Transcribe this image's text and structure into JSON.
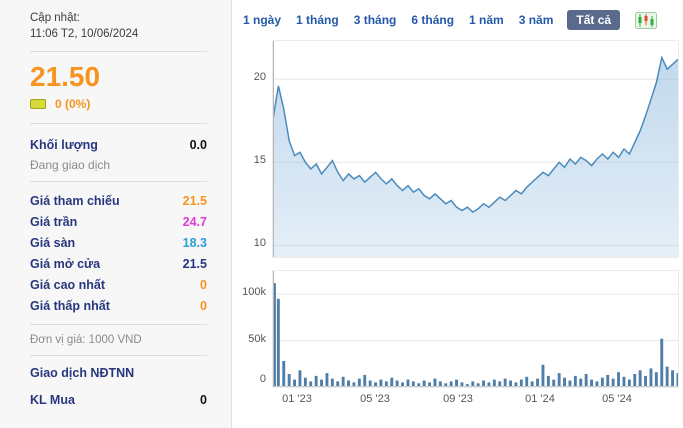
{
  "sidebar": {
    "update_label": "Cập nhật:",
    "update_time": "11:06 T2, 10/06/2024",
    "price": "21.50",
    "change": "0 (0%)",
    "volume_label": "Khối lượng",
    "volume_value": "0.0",
    "status": "Đang giao dịch",
    "price_rows": [
      {
        "label": "Giá tham chiếu",
        "value": "21.5",
        "color": "#f7941e"
      },
      {
        "label": "Giá trần",
        "value": "24.7",
        "color": "#df3bd8"
      },
      {
        "label": "Giá sàn",
        "value": "18.3",
        "color": "#2a9fd8"
      },
      {
        "label": "Giá mở cửa",
        "value": "21.5",
        "color": "#26377d"
      },
      {
        "label": "Giá cao nhất",
        "value": "0",
        "color": "#f7941e"
      },
      {
        "label": "Giá thấp nhất",
        "value": "0",
        "color": "#f7941e"
      }
    ],
    "price_unit": "Đơn vị giá: 1000 VND",
    "foreign_section_label": "Giao dịch NĐTNN",
    "foreign_rows": [
      {
        "label": "KL Mua",
        "value": "0"
      }
    ]
  },
  "tabs": {
    "items": [
      {
        "label": "1 ngày",
        "active": false
      },
      {
        "label": "1 tháng",
        "active": false
      },
      {
        "label": "3 tháng",
        "active": false
      },
      {
        "label": "6 tháng",
        "active": false
      },
      {
        "label": "1 năm",
        "active": false
      },
      {
        "label": "3 năm",
        "active": false
      },
      {
        "label": "Tất cả",
        "active": true
      }
    ]
  },
  "colors": {
    "accent_orange": "#f7941e",
    "navy": "#26377d",
    "line": "#4a8bbd",
    "area_fill": "#6da4d4",
    "bars": "#4f7ea8",
    "tab_active_bg": "#596a8d",
    "tab_link": "#2458a8"
  },
  "chart_data": [
    {
      "type": "area",
      "title": "Price history (1000 VND)",
      "ylim": [
        9.3,
        22.3
      ],
      "y_ticks": [
        20,
        15,
        10
      ],
      "grid": true,
      "legend": "none",
      "x_ticks": [
        {
          "label": "01 '23",
          "pos": 0.062
        },
        {
          "label": "05 '23",
          "pos": 0.255
        },
        {
          "label": "09 '23",
          "pos": 0.46
        },
        {
          "label": "01 '24",
          "pos": 0.662
        },
        {
          "label": "05 '24",
          "pos": 0.853
        }
      ],
      "values": [
        17.6,
        19.6,
        18.2,
        16.3,
        15.4,
        15.6,
        15.0,
        14.6,
        14.9,
        14.3,
        14.7,
        15.1,
        14.4,
        13.9,
        14.3,
        14.0,
        14.2,
        13.8,
        14.1,
        14.4,
        14.0,
        13.7,
        14.0,
        13.6,
        13.3,
        13.6,
        13.2,
        13.4,
        13.0,
        12.8,
        13.1,
        12.8,
        12.5,
        12.7,
        12.3,
        12.1,
        12.3,
        12.0,
        12.2,
        12.5,
        12.3,
        12.6,
        12.9,
        12.7,
        13.0,
        13.3,
        13.1,
        13.5,
        13.8,
        14.1,
        14.4,
        14.2,
        14.6,
        15.0,
        14.7,
        15.2,
        14.9,
        15.3,
        15.1,
        14.8,
        15.2,
        15.5,
        15.2,
        15.6,
        15.3,
        15.8,
        15.5,
        16.2,
        16.9,
        17.8,
        18.8,
        19.8,
        21.3,
        20.6,
        20.9,
        21.2
      ]
    },
    {
      "type": "bar",
      "title": "Volume (shares, thousands)",
      "ylim": [
        0,
        125
      ],
      "y_ticks": [
        {
          "v": 100,
          "label": "100k"
        },
        {
          "v": 50,
          "label": "50k"
        },
        {
          "v": 0,
          "label": "0"
        }
      ],
      "grid": true,
      "values": [
        112,
        95,
        28,
        14,
        8,
        18,
        10,
        6,
        12,
        8,
        15,
        9,
        6,
        11,
        7,
        5,
        9,
        13,
        7,
        5,
        8,
        6,
        10,
        7,
        5,
        8,
        6,
        4,
        7,
        5,
        9,
        6,
        4,
        6,
        8,
        5,
        3,
        6,
        4,
        7,
        5,
        8,
        6,
        9,
        7,
        5,
        8,
        11,
        6,
        9,
        24,
        12,
        8,
        15,
        10,
        7,
        12,
        9,
        14,
        8,
        6,
        10,
        13,
        9,
        16,
        11,
        8,
        14,
        18,
        12,
        20,
        16,
        52,
        22,
        18,
        15
      ]
    }
  ]
}
